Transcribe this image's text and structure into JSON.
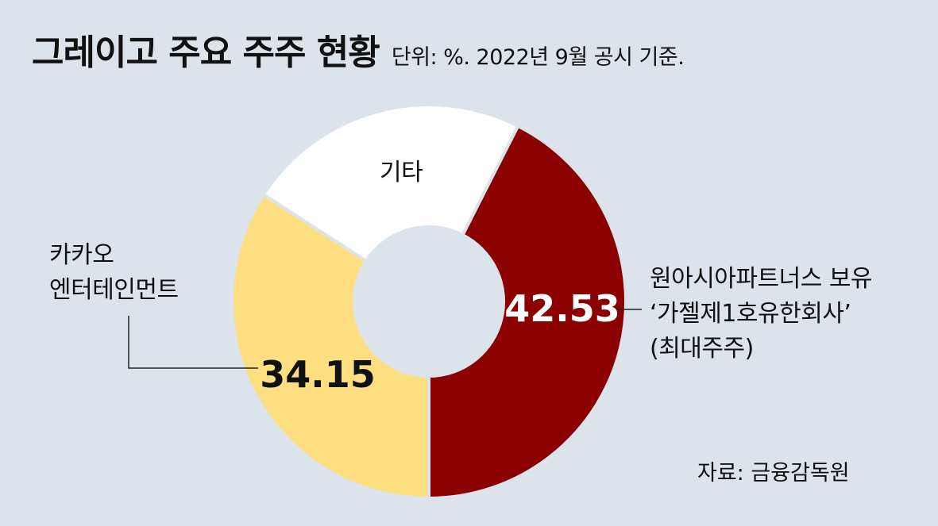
{
  "title": "그레이고 주요 주주 현황",
  "subtitle": "단위: %. 2022년 9월 공시 기준.",
  "source": "자료: 금융감독원",
  "chart_data": {
    "type": "pie",
    "unit": "%",
    "slices": [
      {
        "label_lines": [
          "원아시아파트너스 보유",
          "‘가젤제1호유한회사’",
          "(최대주주)"
        ],
        "value": 42.53,
        "value_text": "42.53",
        "color": "#8b0000",
        "value_color": "#ffffff"
      },
      {
        "label_lines": [
          "카카오",
          "엔터테인먼트"
        ],
        "value": 34.15,
        "value_text": "34.15",
        "color": "#fddf82",
        "value_color": "#111111"
      },
      {
        "label_lines": [
          "기타"
        ],
        "value": 23.32,
        "value_text": "",
        "color": "#ffffff",
        "value_color": "#111111"
      }
    ]
  }
}
